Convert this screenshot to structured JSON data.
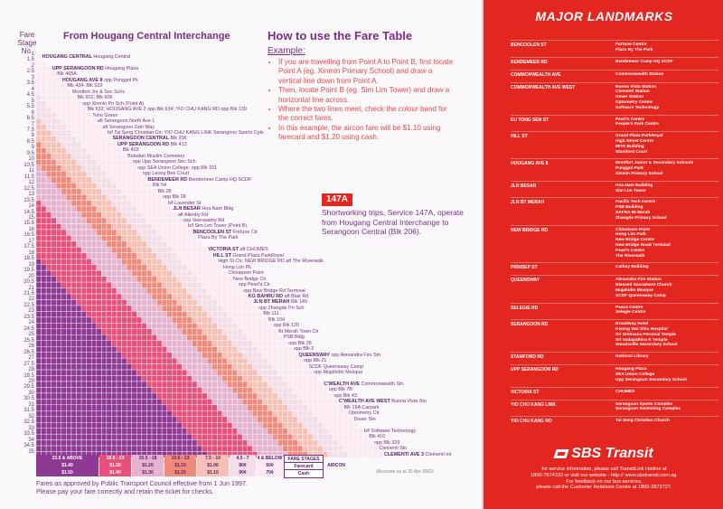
{
  "left": {
    "fare_stage_header": "Fare\nStage No.",
    "from_title": "From Hougang Central Interchange",
    "stages": [
      "1",
      "1.5",
      "2",
      "2.5",
      "3",
      "3.5",
      "4",
      "4.5",
      "5",
      "5.5",
      "6",
      "6.5",
      "7",
      "7.5",
      "8",
      "8.5",
      "9",
      "9.5",
      "10",
      "10.5",
      "11",
      "11.5",
      "12",
      "12.5",
      "13",
      "13.5",
      "14",
      "14.5",
      "15",
      "15.5",
      "16",
      "16.5",
      "17",
      "17.5",
      "18",
      "18.5",
      "19",
      "19.5",
      "20",
      "20.5",
      "21",
      "21.5",
      "22",
      "22.5",
      "23",
      "23.5",
      "24",
      "24.5",
      "25",
      "25.5",
      "26",
      "26.5",
      "27",
      "27.5",
      "28",
      "28.5",
      "29",
      "29.5",
      "30",
      "30.5",
      "31",
      "31.5",
      "32",
      "32.5",
      "33",
      "33.5",
      "34",
      "34.5",
      "35"
    ],
    "stops": [
      {
        "stage": "1",
        "text": "Hougang Central",
        "bold": "HOUGANG CENTRAL"
      },
      {
        "stage": "2",
        "text": "Hougang Plaza",
        "bold": "UPP SERANGOON RD"
      },
      {
        "stage": "2.5",
        "text": "Blk 465A",
        "bold": ""
      },
      {
        "stage": "3",
        "text": "opp Punggol Pk",
        "bold": "HOUGANG AVE 8"
      },
      {
        "stage": "3.5",
        "text": "Blk 434; Blk 532",
        "bold": ""
      },
      {
        "stage": "4",
        "text": "Montfort Jnr & Sec Schs",
        "bold": ""
      },
      {
        "stage": "4.5",
        "text": "Blk 602; Blk 606",
        "bold": ""
      },
      {
        "stage": "5",
        "text": "opp Xinmin Pri Sch (Point A)",
        "bold": ""
      },
      {
        "stage": "5.5",
        "text": "Blk 632; HOUGANG AVE 2 opp Blk 634; YIO CHU KANG RD opp Blk 139",
        "bold": ""
      },
      {
        "stage": "6",
        "text": "Toho Green",
        "bold": ""
      },
      {
        "stage": "6.5",
        "text": "aft Serangoon North Ave 1",
        "bold": ""
      },
      {
        "stage": "7",
        "text": "aft Serangoon Gdn Way",
        "bold": ""
      },
      {
        "stage": "7.5",
        "text": "b/f Tai Seng Christian Ctr; YIO CHU KANG LINK Serangoon Sports Cplx",
        "bold": ""
      },
      {
        "stage": "8",
        "text": "Blk 206",
        "bold": "SERANGOON CENTRAL"
      },
      {
        "stage": "8.5",
        "text": "Blk 413",
        "bold": "UPP SERANGOON RD"
      },
      {
        "stage": "9",
        "text": "Blk 403",
        "bold": ""
      },
      {
        "stage": "9.5",
        "text": "Bidadari Muslim Cemetery",
        "bold": ""
      },
      {
        "stage": "10",
        "text": "opp Upp Serangoon Sec Sch",
        "bold": ""
      },
      {
        "stage": "10.5",
        "text": "opp SEA Union College; opp Blk 101",
        "bold": ""
      },
      {
        "stage": "11",
        "text": "opp Leong Bee Court",
        "bold": ""
      },
      {
        "stage": "11.5",
        "text": "Bendemeer Camp HQ SCDF",
        "bold": "BENDEMEER RD"
      },
      {
        "stage": "12",
        "text": "Blk 54",
        "bold": ""
      },
      {
        "stage": "12.5",
        "text": "Blk 28",
        "bold": ""
      },
      {
        "stage": "13",
        "text": "opp Blk 28",
        "bold": ""
      },
      {
        "stage": "13.5",
        "text": "b/f Lavender St",
        "bold": ""
      },
      {
        "stage": "14",
        "text": "Hoa Nam Bldg",
        "bold": "JLN BESAR"
      },
      {
        "stage": "14.5",
        "text": "aft Allenby Rd",
        "bold": ""
      },
      {
        "stage": "15",
        "text": "opp Veerasamy Rd",
        "bold": ""
      },
      {
        "stage": "15.5",
        "text": "b/f Sim Lim Tower (Point B)",
        "bold": ""
      },
      {
        "stage": "16",
        "text": "Fortune Ctr",
        "bold": "BENCOOLEN ST"
      },
      {
        "stage": "16.5",
        "text": "Plaza By The Park",
        "bold": ""
      },
      {
        "stage": "17.5",
        "text": "aft CHIJMES",
        "bold": "VICTORIA ST"
      },
      {
        "stage": "18",
        "text": "Grand Plaza ParkRoyal",
        "bold": "HILL ST"
      },
      {
        "stage": "18.5",
        "text": "High St Ctr; NEW BRIDGE RD aft The Riverwalk",
        "bold": ""
      },
      {
        "stage": "19",
        "text": "Hong Lim Pk",
        "bold": ""
      },
      {
        "stage": "19.5",
        "text": "Chinatown Point",
        "bold": ""
      },
      {
        "stage": "20",
        "text": "New Bridge Ctr",
        "bold": ""
      },
      {
        "stage": "20.5",
        "text": "opp Pearl's Ctr",
        "bold": ""
      },
      {
        "stage": "21",
        "text": "opp New Bridge Rd Terminal",
        "bold": ""
      },
      {
        "stage": "21.5",
        "text": "aft Blair Rd",
        "bold": "KG BAHRU RD"
      },
      {
        "stage": "22",
        "text": "Blk 149",
        "bold": "JLN BT MERAH"
      },
      {
        "stage": "22.5",
        "text": "opp Zhangde Pri Sch",
        "bold": ""
      },
      {
        "stage": "23",
        "text": "Blk 111",
        "bold": ""
      },
      {
        "stage": "23.5",
        "text": "Blk 104",
        "bold": ""
      },
      {
        "stage": "24",
        "text": "opp Blk 120",
        "bold": ""
      },
      {
        "stage": "24.5",
        "text": "Bt Merah Town Ctr",
        "bold": ""
      },
      {
        "stage": "25",
        "text": "PSB Bldg",
        "bold": ""
      },
      {
        "stage": "25.5",
        "text": "opp Blk 28",
        "bold": ""
      },
      {
        "stage": "26",
        "text": "opp Blk 2",
        "bold": ""
      },
      {
        "stage": "26.5",
        "text": "opp Alexandra Fire Stn",
        "bold": "QUEENSWAY"
      },
      {
        "stage": "27",
        "text": "opp Blk 21",
        "bold": ""
      },
      {
        "stage": "27.5",
        "text": "SCDF Queensway Camp",
        "bold": ""
      },
      {
        "stage": "28",
        "text": "opp Mujahidin Mosque",
        "bold": ""
      },
      {
        "stage": "29",
        "text": "Commonwealth Stn",
        "bold": "C'WEALTH AVE"
      },
      {
        "stage": "29.5",
        "text": "opp Blk 7B",
        "bold": ""
      },
      {
        "stage": "30",
        "text": "opp Blk 43",
        "bold": ""
      },
      {
        "stage": "30.5",
        "text": "Buona Vista Stn",
        "bold": "C'WEALTH AVE WEST"
      },
      {
        "stage": "31",
        "text": "Blk 19A Carpark",
        "bold": ""
      },
      {
        "stage": "31.5",
        "text": "Optometry Ctr",
        "bold": ""
      },
      {
        "stage": "32",
        "text": "Dover Stn",
        "bold": ""
      },
      {
        "stage": "33",
        "text": "b/f Software Technology",
        "bold": ""
      },
      {
        "stage": "33.5",
        "text": "Blk 410",
        "bold": ""
      },
      {
        "stage": "34",
        "text": "opp Blk 329",
        "bold": ""
      },
      {
        "stage": "34.5",
        "text": "Clementi Stn",
        "bold": ""
      },
      {
        "stage": "35",
        "text": "Clementi Int",
        "bold": "CLEMENTI AVE 3"
      }
    ],
    "legend": {
      "stage_bands": [
        "23.5 & ABOVE",
        "18.5 - 23",
        "15.5 - 18",
        "10.5 - 13",
        "7.5 - 10",
        "4.5 - 7",
        "4 & BELOW"
      ],
      "farecard": [
        "$1.40",
        "$1.30",
        "$1.20",
        "$1.10",
        "$1.00",
        "80¢",
        "60¢"
      ],
      "cash": [
        "$1.50",
        "$1.40",
        "$1.30",
        "$1.20",
        "$1.10",
        "90¢",
        "70¢"
      ],
      "fare_stages_label": "FARE STAGES",
      "farecard_label": "Farecard",
      "cash_label": "Cash",
      "aircon_label": "AIRCON",
      "band_colors": [
        "#8e3a94",
        "#e8507a",
        "#e5b3cf",
        "#f08a7a",
        "#f7c0b4",
        "#f3dde9",
        "#fbeaf2"
      ]
    },
    "footer_note": "Fares as approved by Public Transport Council effective from 1 Jun 1997.\nPlease pay your fare correctly and retain the ticket for checks.",
    "accurate_note": "(Accurate as at 30 Apr 2002)"
  },
  "howto": {
    "title": "How to use the Fare Table",
    "example_label": "Example:",
    "steps": [
      "If you are travelling from Point A to Point B, first locate Point A (eg. Xinmin Primary School) and draw a vertical line down from Point A.",
      "Then, locate Point B (eg. Sim Lim Tower) and draw a horizontal line across.",
      "Where the two lines meet, check the colour band for the correct fares.",
      "In this example, the aircon fare will be $1.10 using farecard and $1.20 using cash."
    ],
    "service_badge": "147A",
    "service_text": "Shortworking trips, Service 147A, operate from Hougang Central Interchange to Serangoon Central (Blk 206)."
  },
  "right": {
    "title": "MAJOR LANDMARKS",
    "landmarks": [
      {
        "road": "BENCOOLEN ST",
        "places": "Fortune Centre\nPlaza By The Park"
      },
      {
        "road": "BENDEMEER RD",
        "places": "Bendemeer Camp HQ SCDF"
      },
      {
        "road": "COMMONWEALTH AVE",
        "places": "Commonwealth Station"
      },
      {
        "road": "COMMONWEALTH AVE WEST",
        "places": "Buona Vista Station\nClementi Station\nDover Station\nOptometry Centre\nSoftware Technology"
      },
      {
        "road": "EU TONG SEN ST",
        "places": "Pearl's Centre\nPeople's Park Centre"
      },
      {
        "road": "HILL ST",
        "places": "Grand Plaza ParkRoyal\nHigh Street Centre\nMITA Building\nStamford Court"
      },
      {
        "road": "HOUGANG AVE 8",
        "places": "Montfort Junior & Secondary Schools\nPunggol Park\nXinmin Primary School"
      },
      {
        "road": "JLN BESAR",
        "places": "Hoa Nam Building\nSim Lim Tower"
      },
      {
        "road": "JLN BT MERAH",
        "places": "Pacific Tech Centre\nPSB Building\nSAFRA Bt Merah\nZhangde Primary School"
      },
      {
        "road": "NEW BRIDGE RD",
        "places": "Chinatown Point\nHong Lim Park\nNew Bridge Centre\nNew Bridge Road Terminal\nPearl's Centre\nThe Riverwalk"
      },
      {
        "road": "PRINSEP ST",
        "places": "Cathay Building"
      },
      {
        "road": "QUEENSWAY",
        "places": "Alexandra Fire Station\nBlessed Sacrament Church\nMujahidin Mosque\nSCDF Queensway Camp"
      },
      {
        "road": "SELEGIE RD",
        "places": "Peace Centre\nSelegie Centre"
      },
      {
        "road": "SERANGOON RD",
        "places": "Broadway Hotel\nKwong Wai Shiu Hospital\nSri Srinivasa Perumal Temple\nSri Vadapathira K Temple\nWoodsville Secondary School"
      },
      {
        "road": "STAMFORD RD",
        "places": "National Library"
      },
      {
        "road": "UPP SERANGOON RD",
        "places": "Hougang Plaza\nSEA Union College\nUpp Serangoon Secondary School"
      },
      {
        "road": "VICTORIA ST",
        "places": "CHIJMES"
      },
      {
        "road": "YIO CHU KANG LINK",
        "places": "Serangoon Sports Complex\nSerangoon Swimming Complex"
      },
      {
        "road": "YIO CHU KANG RD",
        "places": "Tai Seng Christian Church"
      }
    ],
    "logo_text": "SBS Transit",
    "service_info": "for service information, please call TransitLink Hotline at\n1800-7674333 or visit our website - http:// www.sbstransit.com.sg.\nFor feedback on our bus services,\nplease call the Customer Relations Centre at 1800-2872727."
  }
}
